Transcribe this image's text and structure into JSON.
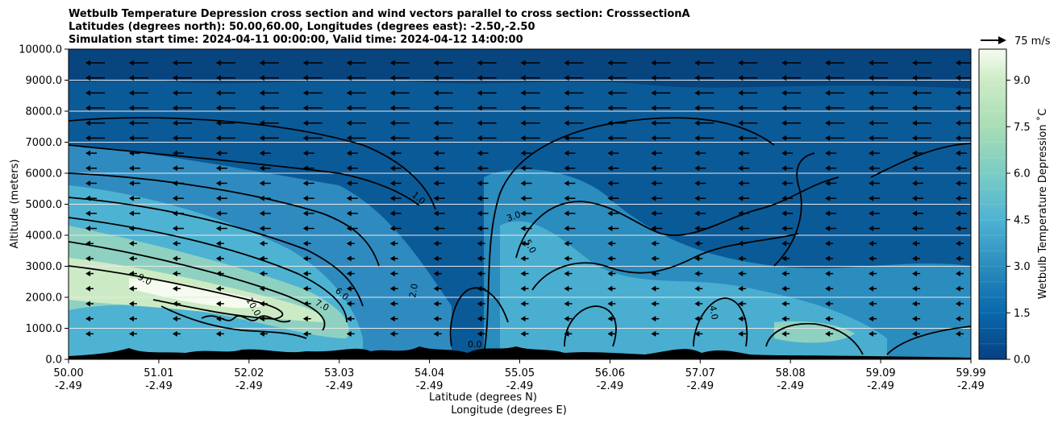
{
  "chart_data": {
    "type": "contour",
    "title_lines": [
      "Wetbulb Temperature Depression cross section and wind vectors parallel to cross section: CrosssectionA",
      "Latitudes (degrees north): 50.00,60.00, Longitudes (degrees east): -2.50,-2.50",
      "Simulation start time: 2024-04-11 00:00:00, Valid time: 2024-04-12 14:00:00"
    ],
    "ylabel": "Altitude (meters)",
    "xlabel_lat": "Latitude (degrees N)",
    "xlabel_lon": "Longitude (degrees E)",
    "ylim": [
      0,
      10000
    ],
    "yticks": [
      "0.0",
      "1000.0",
      "2000.0",
      "3000.0",
      "4000.0",
      "5000.0",
      "6000.0",
      "7000.0",
      "8000.0",
      "9000.0",
      "10000.0"
    ],
    "xticks_lat": [
      "50.00",
      "51.01",
      "52.02",
      "53.03",
      "54.04",
      "55.05",
      "56.06",
      "57.07",
      "58.08",
      "59.09",
      "59.99"
    ],
    "xticks_lon": [
      "-2.49",
      "-2.49",
      "-2.49",
      "-2.49",
      "-2.49",
      "-2.49",
      "-2.49",
      "-2.49",
      "-2.49",
      "-2.49",
      "-2.49"
    ],
    "colorbar": {
      "label": "Wetbulb Temperature Depression ˚C",
      "range": [
        0,
        10
      ],
      "ticks": [
        "0.0",
        "1.5",
        "3.0",
        "4.5",
        "6.0",
        "7.5",
        "9.0"
      ],
      "colormap": "GnBu_r"
    },
    "wind_key": "75 m/s",
    "contour_labels": [
      "9.0",
      "10.0",
      "7.0",
      "6.0",
      "5.0",
      "4.0",
      "3.0",
      "2.0",
      "1.0",
      "0.0"
    ],
    "grid": "horizontal"
  }
}
